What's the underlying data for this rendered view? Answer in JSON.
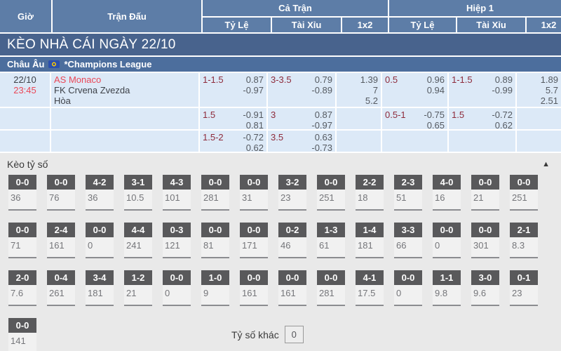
{
  "colors": {
    "header_bg": "#5d7da7",
    "title_bar_bg": "#48638d",
    "league_bar_bg": "#4c6e9d",
    "row_bg": "#dce9f7",
    "accent_red": "#ea4757",
    "handicap_maroon": "#8e2b3b",
    "odds_text": "#555a61",
    "section_bg": "#e9e9e9",
    "score_btn_bg": "#59595b"
  },
  "table": {
    "columns": {
      "time": "Giờ",
      "match": "Trận Đấu",
      "full_time": "Cả Trận",
      "first_half": "Hiệp 1",
      "handicap": "Tỷ Lệ",
      "over_under": "Tài Xỉu",
      "one_x_two": "1x2"
    },
    "day_title": "KÈO NHÀ CÁI NGÀY 22/10",
    "league": {
      "region": "Châu Âu",
      "flag_icon": "eu-flag-icon",
      "name": "*Champions League"
    },
    "match": {
      "date": "22/10",
      "time": "23:45",
      "home": "AS Monaco",
      "away": "FK Crvena Zvezda",
      "draw": "Hòa"
    },
    "odds_rows": [
      {
        "ft_handicap": {
          "line": "1-1.5",
          "odds": [
            "0.87",
            "-0.97"
          ]
        },
        "ft_over_under": {
          "line": "3-3.5",
          "odds": [
            "0.79",
            "-0.89"
          ]
        },
        "ft_1x2": [
          "1.39",
          "7",
          "5.2"
        ],
        "h1_handicap": {
          "line": "0.5",
          "odds": [
            "0.96",
            "0.94"
          ]
        },
        "h1_over_under": {
          "line": "1-1.5",
          "odds": [
            "0.89",
            "-0.99"
          ]
        },
        "h1_1x2": [
          "1.89",
          "5.7",
          "2.51"
        ]
      },
      {
        "ft_handicap": {
          "line": "1.5",
          "odds": [
            "-0.91",
            "0.81"
          ]
        },
        "ft_over_under": {
          "line": "3",
          "odds": [
            "0.87",
            "-0.97"
          ]
        },
        "ft_1x2": [],
        "h1_handicap": {
          "line": "0.5-1",
          "odds": [
            "-0.75",
            "0.65"
          ]
        },
        "h1_over_under": {
          "line": "1.5",
          "odds": [
            "-0.72",
            "0.62"
          ]
        },
        "h1_1x2": []
      },
      {
        "ft_handicap": {
          "line": "1.5-2",
          "odds": [
            "-0.72",
            "0.62"
          ]
        },
        "ft_over_under": {
          "line": "3.5",
          "odds": [
            "0.63",
            "-0.73"
          ]
        },
        "ft_1x2": [],
        "h1_handicap": null,
        "h1_over_under": null,
        "h1_1x2": []
      }
    ]
  },
  "score_section": {
    "title": "Kèo tỷ số",
    "collapse_icon": "chevron-up-icon",
    "collapse_glyph": "▲",
    "rows": [
      [
        {
          "score": "0-0",
          "odds": "36"
        },
        {
          "score": "0-0",
          "odds": "76"
        },
        {
          "score": "4-2",
          "odds": "36"
        },
        {
          "score": "3-1",
          "odds": "10.5"
        },
        {
          "score": "4-3",
          "odds": "101"
        },
        {
          "score": "0-0",
          "odds": "281"
        },
        {
          "score": "0-0",
          "odds": "31"
        },
        {
          "score": "3-2",
          "odds": "23"
        },
        {
          "score": "0-0",
          "odds": "251"
        },
        {
          "score": "2-2",
          "odds": "18"
        },
        {
          "score": "2-3",
          "odds": "51"
        },
        {
          "score": "4-0",
          "odds": "16"
        },
        {
          "score": "0-0",
          "odds": "21"
        },
        {
          "score": "0-0",
          "odds": "251"
        }
      ],
      [
        {
          "score": "0-0",
          "odds": "71"
        },
        {
          "score": "2-4",
          "odds": "161"
        },
        {
          "score": "0-0",
          "odds": "0"
        },
        {
          "score": "4-4",
          "odds": "241"
        },
        {
          "score": "0-3",
          "odds": "121"
        },
        {
          "score": "0-0",
          "odds": "81"
        },
        {
          "score": "0-0",
          "odds": "171"
        },
        {
          "score": "0-2",
          "odds": "46"
        },
        {
          "score": "1-3",
          "odds": "61"
        },
        {
          "score": "1-4",
          "odds": "181"
        },
        {
          "score": "3-3",
          "odds": "66"
        },
        {
          "score": "0-0",
          "odds": "0"
        },
        {
          "score": "0-0",
          "odds": "301"
        },
        {
          "score": "2-1",
          "odds": "8.3"
        }
      ],
      [
        {
          "score": "2-0",
          "odds": "7.6"
        },
        {
          "score": "0-4",
          "odds": "261"
        },
        {
          "score": "3-4",
          "odds": "181"
        },
        {
          "score": "1-2",
          "odds": "21"
        },
        {
          "score": "0-0",
          "odds": "0"
        },
        {
          "score": "1-0",
          "odds": "9"
        },
        {
          "score": "0-0",
          "odds": "161"
        },
        {
          "score": "0-0",
          "odds": "161"
        },
        {
          "score": "0-0",
          "odds": "281"
        },
        {
          "score": "4-1",
          "odds": "17.5"
        },
        {
          "score": "0-0",
          "odds": "0"
        },
        {
          "score": "1-1",
          "odds": "9.8"
        },
        {
          "score": "3-0",
          "odds": "9.6"
        },
        {
          "score": "0-1",
          "odds": "23"
        }
      ],
      [
        {
          "score": "0-0",
          "odds": "141"
        }
      ]
    ],
    "other": {
      "label": "Tỷ số khác",
      "value": "0"
    }
  }
}
